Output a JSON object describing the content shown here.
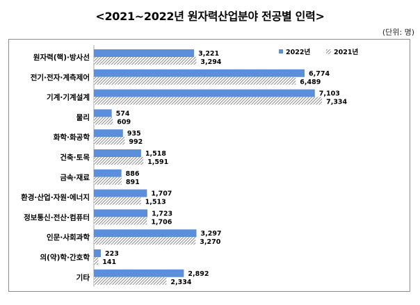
{
  "header": {
    "title": "<2021~2022년 원자력산업분야 전공별 인력>",
    "unit": "(단위: 명)"
  },
  "chart_data": {
    "type": "bar",
    "orientation": "horizontal",
    "title": "<2021~2022년 원자력산업분야 전공별 인력>",
    "categories": [
      "원자력(핵)·방사선",
      "전기·전자·계측제어",
      "기계·기계설계",
      "물리",
      "화학·화공학",
      "건축·토목",
      "금속·재료",
      "환경·산업·자원·에너지",
      "정보통신·전산·컴퓨터",
      "인문·사회과학",
      "의(약)학·간호학",
      "기타"
    ],
    "series": [
      {
        "name": "2022년",
        "values": [
          3221,
          6774,
          7103,
          574,
          935,
          1518,
          886,
          1707,
          1723,
          3297,
          223,
          2892
        ],
        "color": "#5b8fdc",
        "pattern": "solid"
      },
      {
        "name": "2021년",
        "values": [
          3294,
          6489,
          7334,
          609,
          992,
          1591,
          891,
          1513,
          1706,
          3270,
          141,
          2334
        ],
        "color": "#7f7f7f",
        "pattern": "hatched"
      }
    ],
    "value_labels": {
      "2022년": [
        "3,221",
        "6,774",
        "7,103",
        "574",
        "935",
        "1,518",
        "886",
        "1,707",
        "1,723",
        "3,297",
        "223",
        "2,892"
      ],
      "2021년": [
        "3,294",
        "6,489",
        "7,334",
        "609",
        "992",
        "1,591",
        "891",
        "1,513",
        "1,706",
        "3,270",
        "141",
        "2,334"
      ]
    },
    "xlim": [
      0,
      7600
    ],
    "grid": false,
    "legend_position": "top-right"
  }
}
